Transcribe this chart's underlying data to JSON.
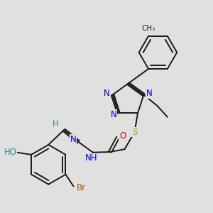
{
  "bg_color": "#e0e0e0",
  "bond_color": "#1a1a1a",
  "bond_width": 1.4,
  "atom_colors": {
    "N": "#0000cc",
    "O": "#cc0000",
    "S": "#aaaa00",
    "Br": "#bb5500",
    "C": "#1a1a1a",
    "H": "#3a8a8a",
    "HO": "#3a8a8a"
  },
  "font_size": 8.5
}
